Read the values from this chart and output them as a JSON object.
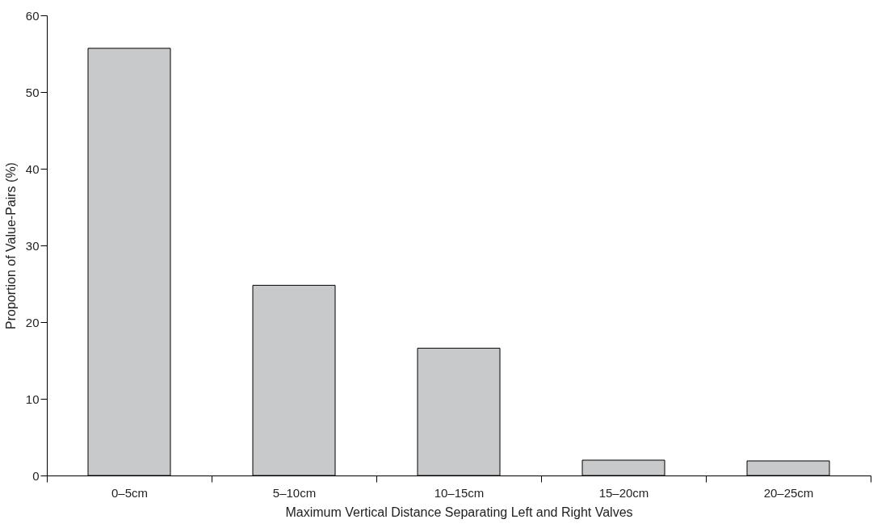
{
  "chart_data": {
    "type": "bar",
    "xlabel": "Maximum Vertical Distance Separating Left and Right Valves",
    "ylabel": "Proportion of Value-Pairs (%)",
    "categories": [
      "0–5cm",
      "5–10cm",
      "10–15cm",
      "15–20cm",
      "20–25cm"
    ],
    "values": [
      55.7,
      24.8,
      16.6,
      2.0,
      1.9
    ],
    "color": "#c8c9cb",
    "ylim": [
      0,
      60
    ],
    "yticks": [
      0,
      10,
      20,
      30,
      40,
      50,
      60
    ],
    "grid": false
  }
}
